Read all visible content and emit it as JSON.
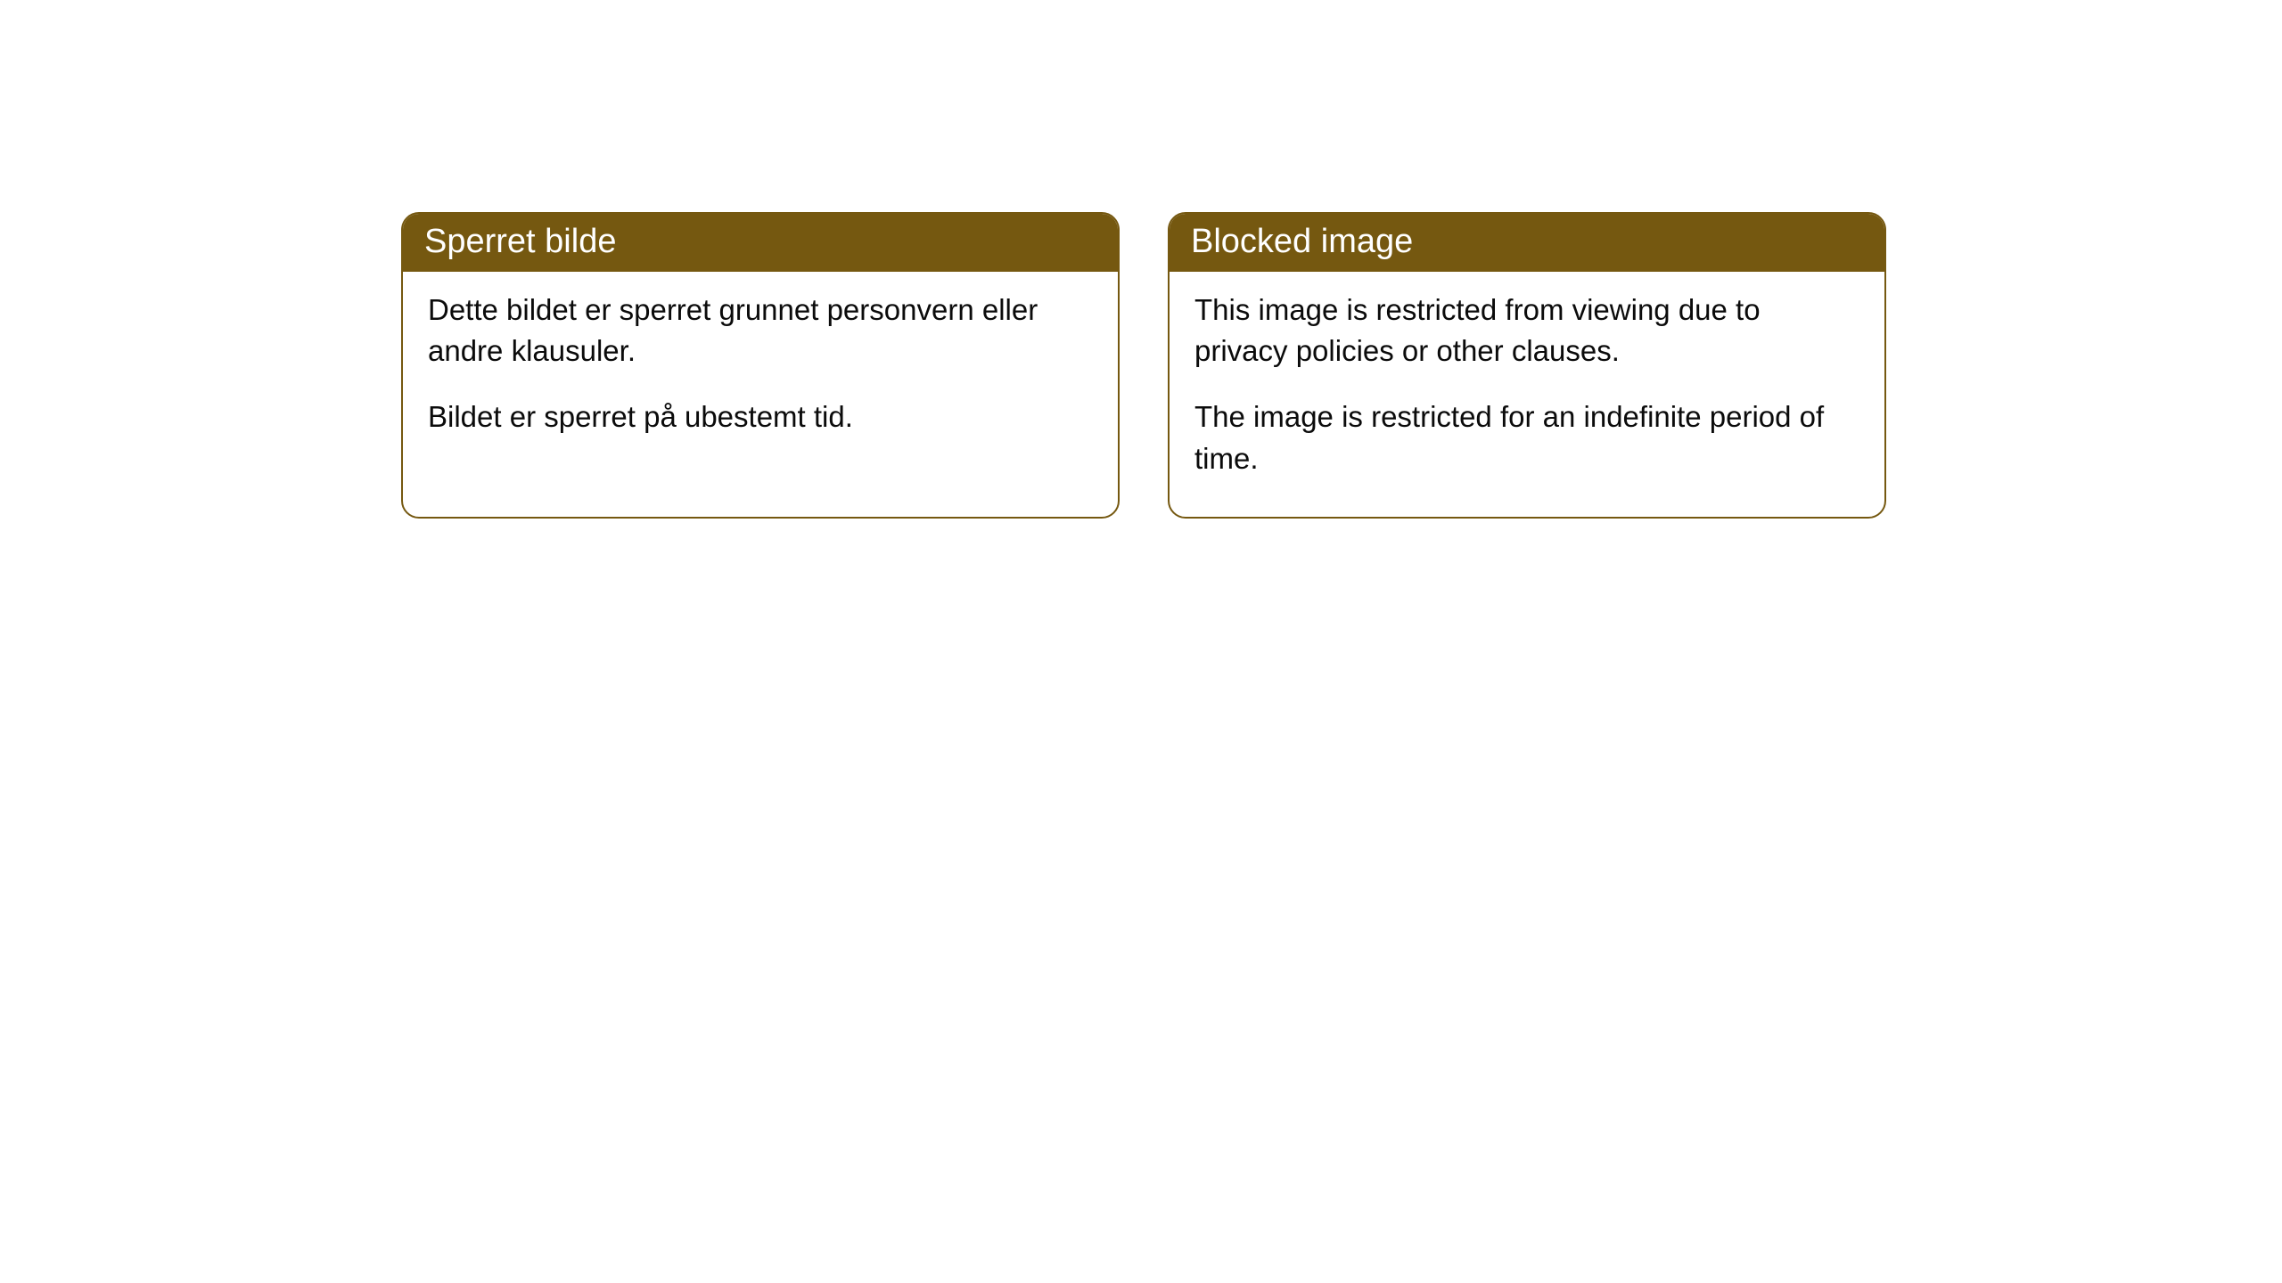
{
  "cards": [
    {
      "title": "Sperret bilde",
      "paragraph1": "Dette bildet er sperret grunnet personvern eller andre klausuler.",
      "paragraph2": "Bildet er sperret på ubestemt tid."
    },
    {
      "title": "Blocked image",
      "paragraph1": "This image is restricted from viewing due to privacy policies or other clauses.",
      "paragraph2": "The image is restricted for an indefinite period of time."
    }
  ],
  "styling": {
    "header_background": "#755810",
    "header_text_color": "#ffffff",
    "border_color": "#755810",
    "body_background": "#ffffff",
    "body_text_color": "#0b0b0b",
    "border_radius": 20,
    "header_fontsize": 38,
    "body_fontsize": 33
  }
}
